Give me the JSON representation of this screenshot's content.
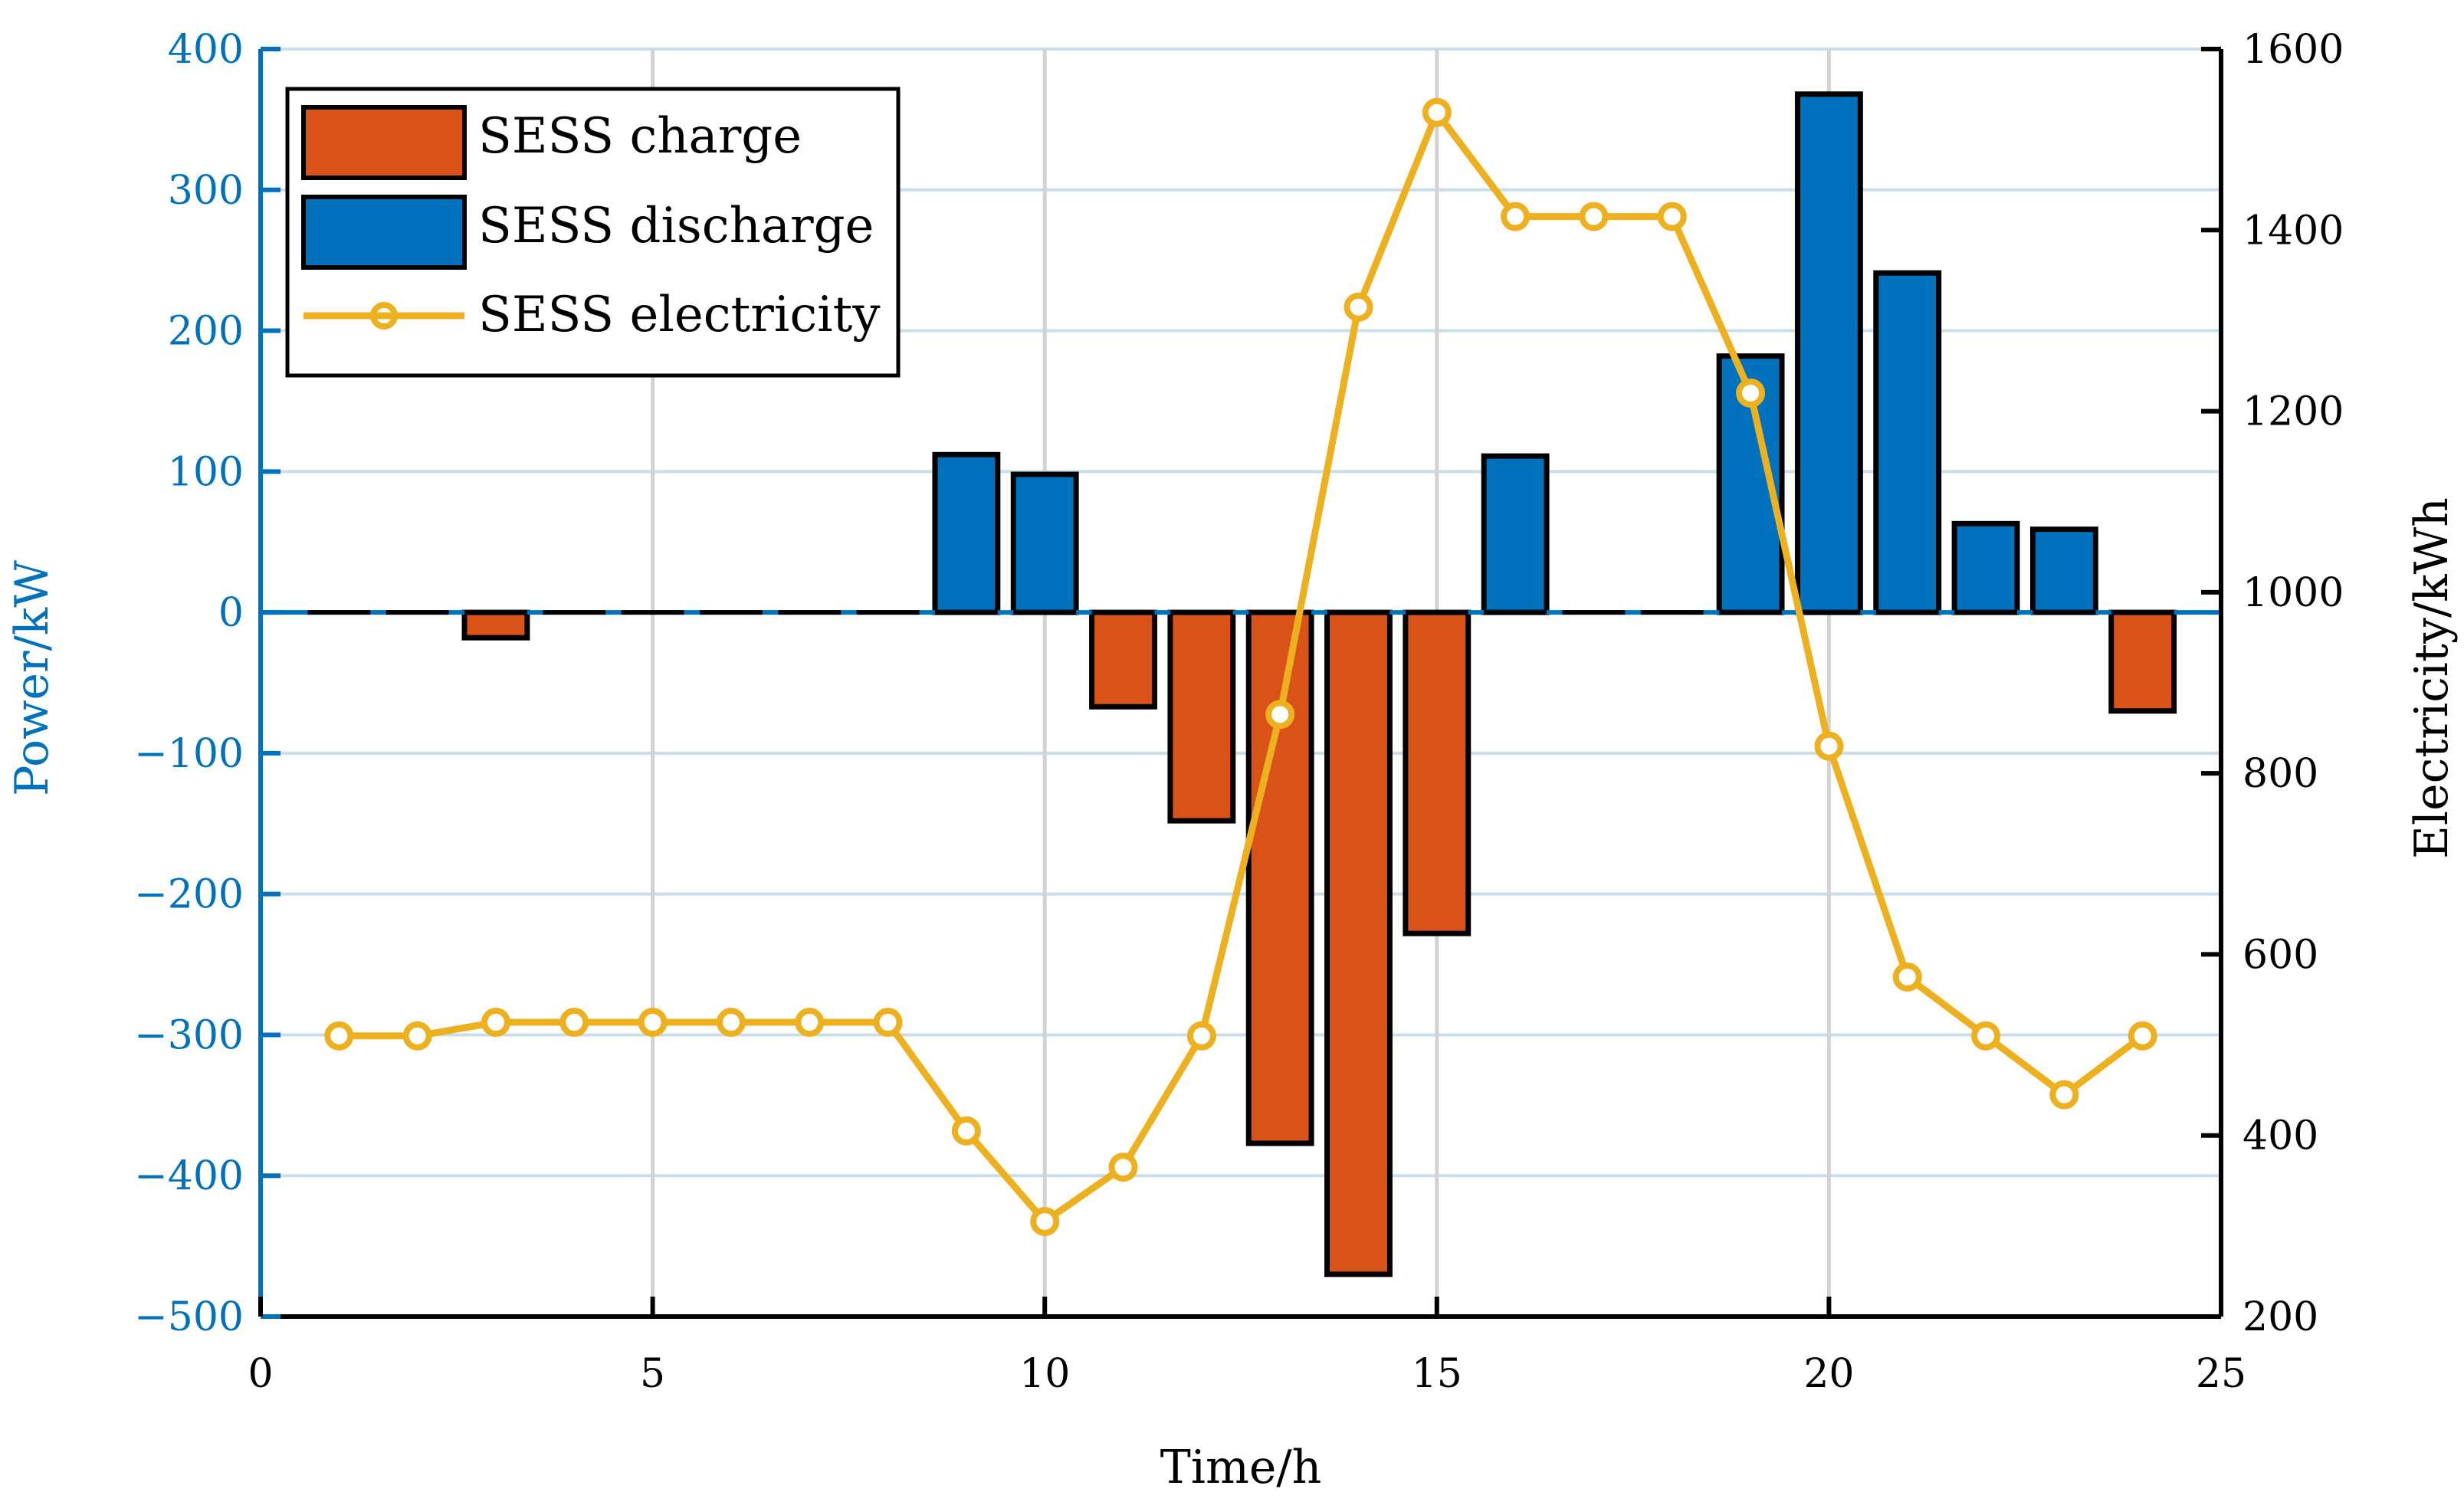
{
  "chart_data": {
    "type": "bar+line",
    "xlabel": "Time/h",
    "ylabel_left": "Power/kW",
    "ylabel_right": "Electricity/kWh",
    "xlim": [
      0,
      25
    ],
    "ylim_left": [
      -500,
      400
    ],
    "ylim_right": [
      200,
      1600
    ],
    "x_ticks": [
      0,
      5,
      10,
      15,
      20,
      25
    ],
    "y_left_ticks": [
      400,
      300,
      200,
      100,
      0,
      -100,
      -200,
      -300,
      -400,
      -500
    ],
    "y_left_tick_labels": [
      "400",
      "300",
      "200",
      "100",
      "0",
      "−100",
      "−200",
      "−300",
      "−400",
      "−500"
    ],
    "y_right_ticks": [
      1600,
      1400,
      1200,
      1000,
      800,
      600,
      400,
      200
    ],
    "y_right_tick_labels": [
      "1600",
      "1400",
      "1200",
      "1000",
      "800",
      "600",
      "400",
      "200"
    ],
    "grid": true,
    "legend_position": "top-left",
    "legend": {
      "charge": "SESS charge",
      "discharge": "SESS discharge",
      "electricity": "SESS electricity"
    },
    "colors": {
      "charge": "#D95319",
      "discharge": "#0072BD",
      "electricity": "#EDB120",
      "left_axis": "#0072BD",
      "right_axis": "#000000",
      "grid_horizontal": "#C9DDEB",
      "grid_vertical": "#D3D3D3"
    },
    "hours": [
      1,
      2,
      3,
      4,
      5,
      6,
      7,
      8,
      9,
      10,
      11,
      12,
      13,
      14,
      15,
      16,
      17,
      18,
      19,
      20,
      21,
      22,
      23,
      24
    ],
    "power_kw": [
      0,
      0,
      -18,
      0,
      0,
      0,
      0,
      0,
      112,
      98,
      -67,
      -148,
      -377,
      -470,
      -228,
      111,
      0,
      0,
      182,
      368,
      241,
      63,
      59,
      -70
    ],
    "electricity_kwh": [
      510,
      510,
      525,
      525,
      525,
      525,
      525,
      525,
      405,
      305,
      365,
      510,
      865,
      1315,
      1530,
      1415,
      1415,
      1415,
      1220,
      830,
      575,
      510,
      445,
      510
    ]
  }
}
